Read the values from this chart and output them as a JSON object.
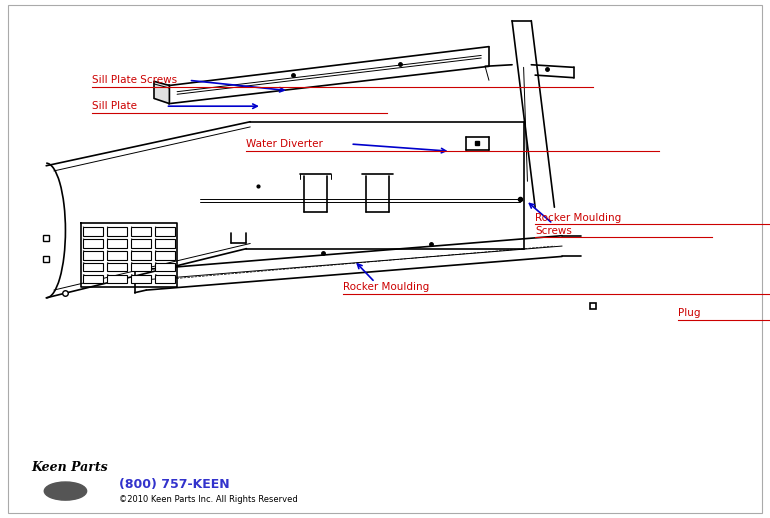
{
  "background_color": "#ffffff",
  "line_color": "#000000",
  "label_color": "#cc0000",
  "arrow_color": "#0000cc",
  "footer_phone_color": "#3333cc",
  "footer_copyright_color": "#000000",
  "labels": {
    "sill_plate_screws": "Sill Plate Screws",
    "sill_plate": "Sill Plate",
    "water_diverter": "Water Diverter",
    "rocker_moulding_screws_1": "Rocker Moulding",
    "rocker_moulding_screws_2": "Screws",
    "rocker_moulding": "Rocker Moulding",
    "plug": "Plug"
  },
  "footer_phone": "(800) 757-KEEN",
  "footer_copyright": "©2010 Keen Parts Inc. All Rights Reserved"
}
